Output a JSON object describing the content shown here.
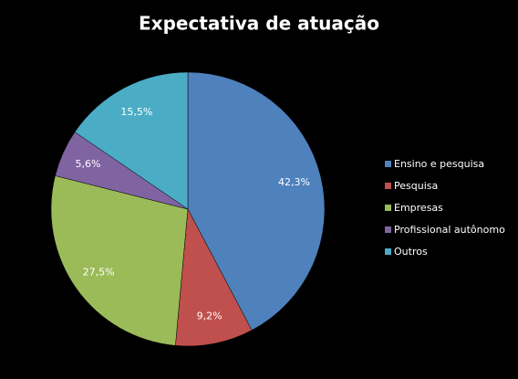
{
  "chart_data": {
    "type": "pie",
    "title": "Expectativa de atuação",
    "categories": [
      "Ensino e pesquisa",
      "Pesquisa",
      "Empresas",
      "Profissional autônomo",
      "Outros"
    ],
    "values": [
      42.3,
      9.2,
      27.5,
      5.6,
      15.5
    ],
    "value_labels": [
      "42,3%",
      "9,2%",
      "27,5%",
      "5,6%",
      "15,5%"
    ],
    "colors": [
      "#4f81bd",
      "#c0504d",
      "#9bbb59",
      "#8064a2",
      "#4bacc6"
    ],
    "legend": "right"
  }
}
